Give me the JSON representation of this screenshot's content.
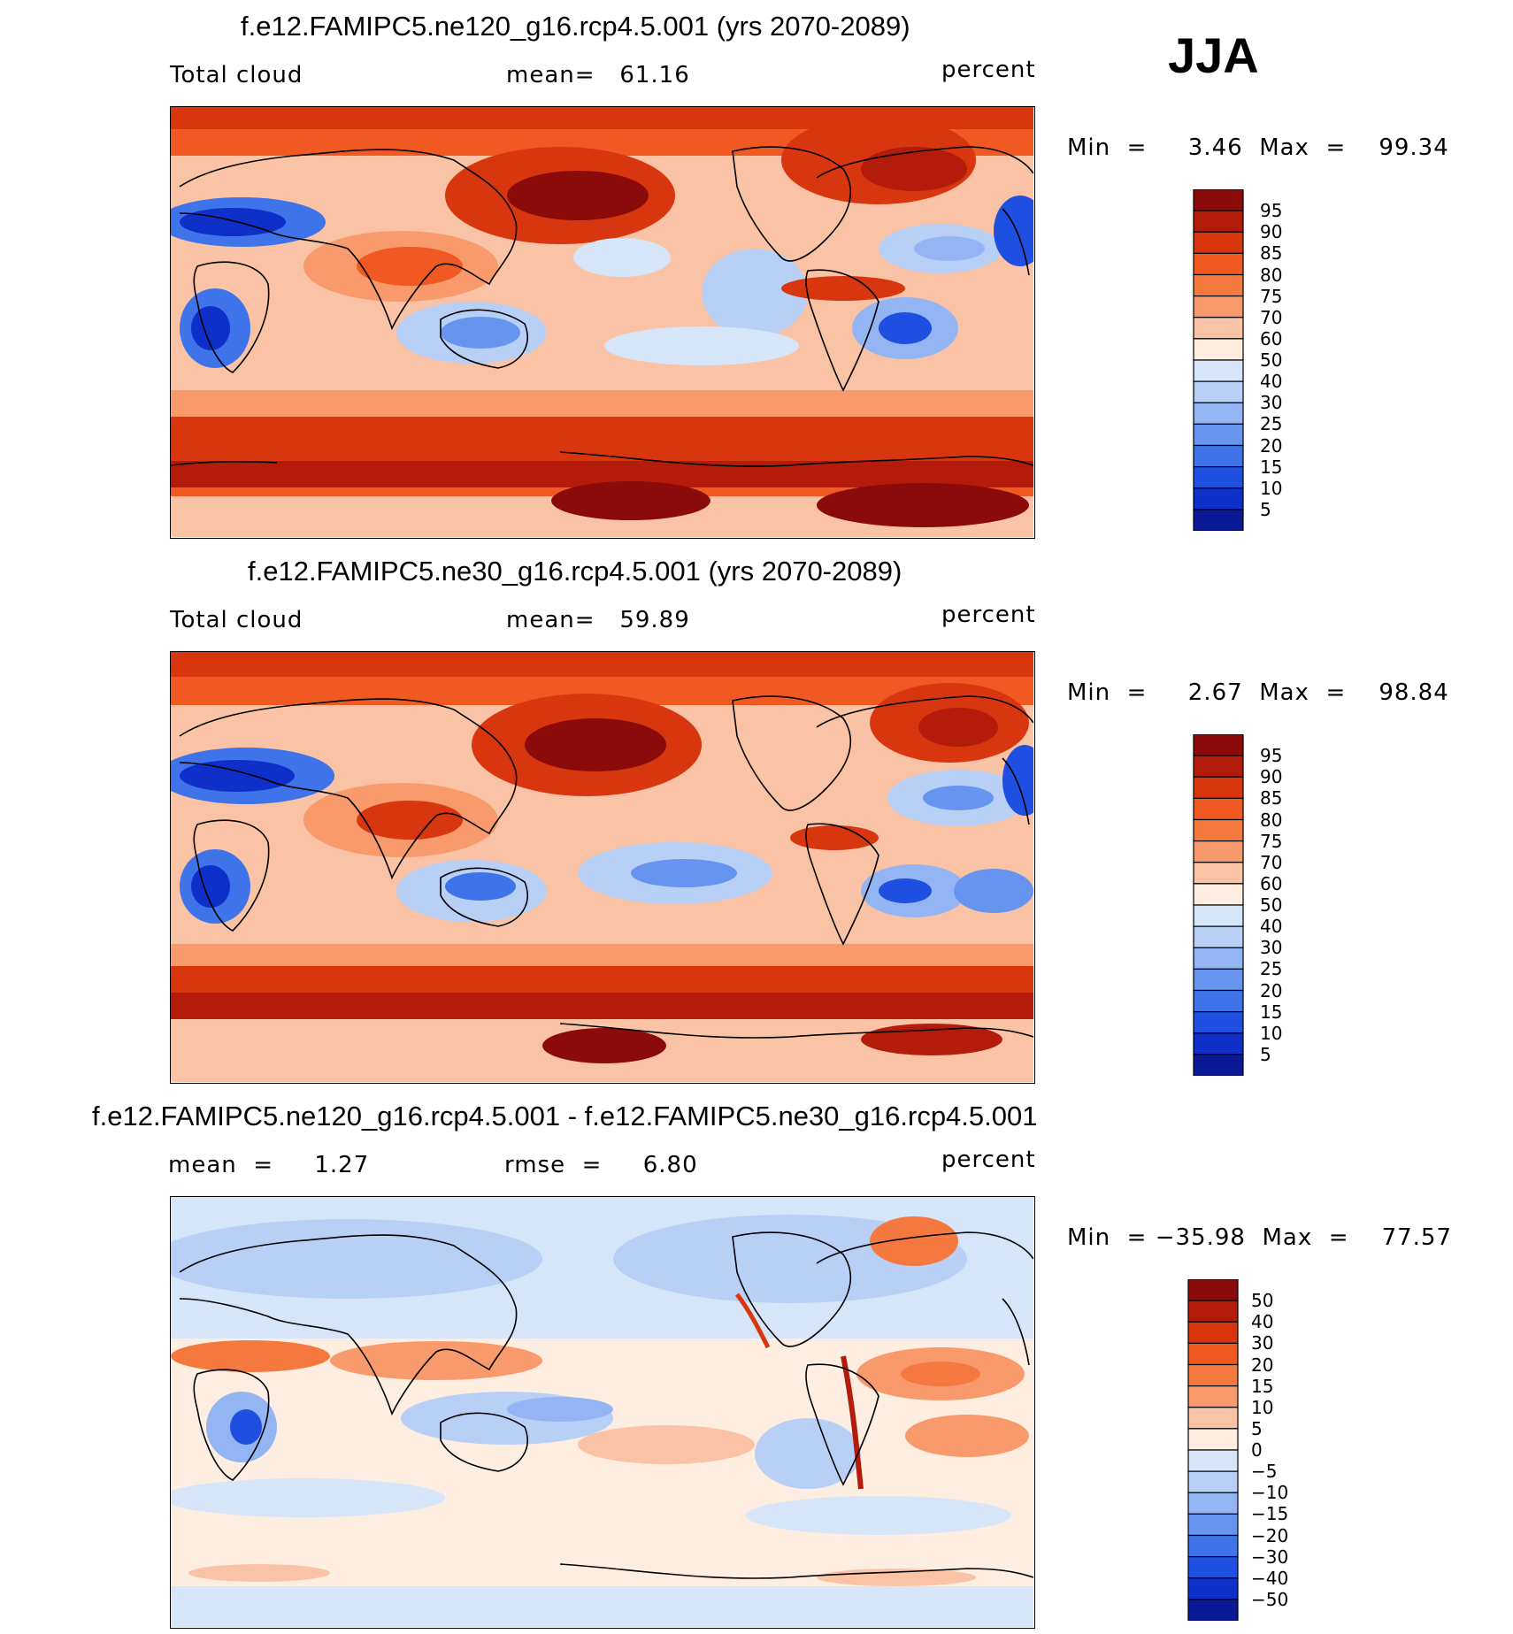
{
  "season": "JJA",
  "panels": [
    {
      "title": "f.e12.FAMIPC5.ne120_g16.rcp4.5.001 (yrs 2070-2089)",
      "left_label": "Total cloud",
      "center_label": "mean=   61.16",
      "right_label": "percent",
      "minmax": "Min  =     3.46  Max  =    99.34",
      "colorbar_labels": [
        "95",
        "90",
        "85",
        "80",
        "75",
        "70",
        "60",
        "50",
        "40",
        "30",
        "25",
        "20",
        "15",
        "10",
        "5"
      ],
      "colorbar_colors": [
        "#8b0a0a",
        "#b31b0a",
        "#d8360f",
        "#f05a22",
        "#f5793f",
        "#f89a6c",
        "#fbc3a6",
        "#fdeee1",
        "#d7e5f8",
        "#b9d0f6",
        "#94b5f3",
        "#6694ef",
        "#3e73ea",
        "#1f4fe0",
        "#0e2fc8",
        "#0a1a96"
      ]
    },
    {
      "title": "f.e12.FAMIPC5.ne30_g16.rcp4.5.001 (yrs 2070-2089)",
      "left_label": "Total cloud",
      "center_label": "mean=   59.89",
      "right_label": "percent",
      "minmax": "Min  =     2.67  Max  =    98.84",
      "colorbar_labels": [
        "95",
        "90",
        "85",
        "80",
        "75",
        "70",
        "60",
        "50",
        "40",
        "30",
        "25",
        "20",
        "15",
        "10",
        "5"
      ],
      "colorbar_colors": [
        "#8b0a0a",
        "#b31b0a",
        "#d8360f",
        "#f05a22",
        "#f5793f",
        "#f89a6c",
        "#fbc3a6",
        "#fdeee1",
        "#d7e5f8",
        "#b9d0f6",
        "#94b5f3",
        "#6694ef",
        "#3e73ea",
        "#1f4fe0",
        "#0e2fc8",
        "#0a1a96"
      ]
    },
    {
      "title": "f.e12.FAMIPC5.ne120_g16.rcp4.5.001 - f.e12.FAMIPC5.ne30_g16.rcp4.5.001",
      "left_label": "mean  =     1.27",
      "center_label": "rmse  =     6.80",
      "right_label": "percent",
      "minmax": "Min  = −35.98  Max  =    77.57",
      "colorbar_labels": [
        "50",
        "40",
        "30",
        "20",
        "15",
        "10",
        "5",
        "0",
        "−5",
        "−10",
        "−15",
        "−20",
        "−30",
        "−40",
        "−50"
      ],
      "colorbar_colors": [
        "#8b0a0a",
        "#b31b0a",
        "#d8360f",
        "#f05a22",
        "#f5793f",
        "#f89a6c",
        "#fbc3a6",
        "#fdeee1",
        "#d7e5f8",
        "#b9d0f6",
        "#94b5f3",
        "#6694ef",
        "#3e73ea",
        "#1f4fe0",
        "#0e2fc8",
        "#0a1a96"
      ]
    }
  ],
  "chart_data": [
    {
      "type": "heatmap",
      "title": "f.e12.FAMIPC5.ne120_g16.rcp4.5.001 (yrs 2070-2089)",
      "variable": "Total cloud",
      "units": "percent",
      "mean": 61.16,
      "min": 3.46,
      "max": 99.34,
      "contour_levels": [
        5,
        10,
        15,
        20,
        25,
        30,
        40,
        50,
        60,
        70,
        75,
        80,
        85,
        90,
        95
      ]
    },
    {
      "type": "heatmap",
      "title": "f.e12.FAMIPC5.ne30_g16.rcp4.5.001 (yrs 2070-2089)",
      "variable": "Total cloud",
      "units": "percent",
      "mean": 59.89,
      "min": 2.67,
      "max": 98.84,
      "contour_levels": [
        5,
        10,
        15,
        20,
        25,
        30,
        40,
        50,
        60,
        70,
        75,
        80,
        85,
        90,
        95
      ]
    },
    {
      "type": "heatmap",
      "title": "f.e12.FAMIPC5.ne120_g16.rcp4.5.001 - f.e12.FAMIPC5.ne30_g16.rcp4.5.001",
      "units": "percent",
      "mean": 1.27,
      "rmse": 6.8,
      "min": -35.98,
      "max": 77.57,
      "contour_levels": [
        -50,
        -40,
        -30,
        -20,
        -15,
        -10,
        -5,
        0,
        5,
        10,
        15,
        20,
        30,
        40,
        50
      ]
    }
  ]
}
